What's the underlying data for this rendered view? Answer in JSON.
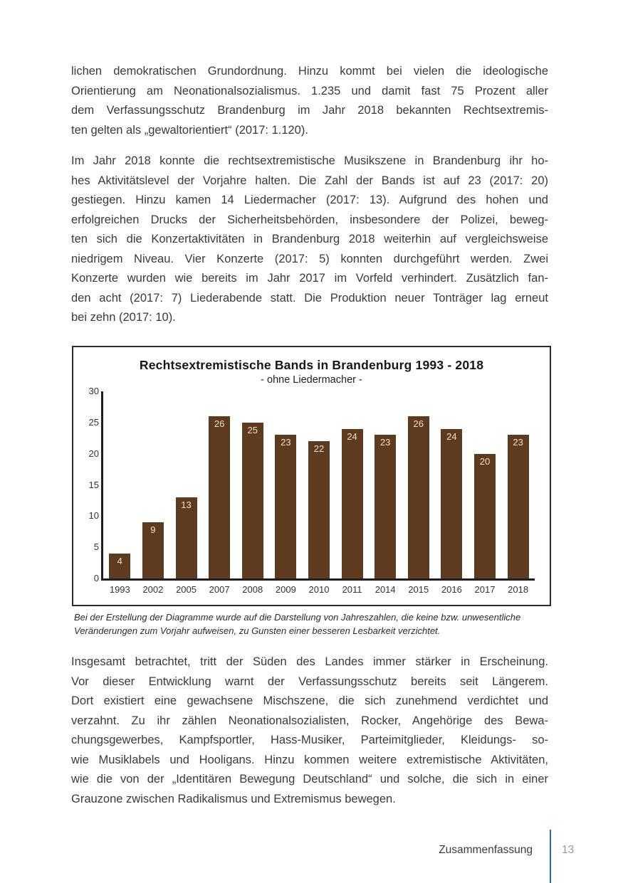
{
  "document": {
    "paragraph1_lines": [
      "lichen demokratischen Grundordnung. Hinzu kommt bei vielen die ideologische",
      "Orientierung am Neonationalsozialismus. 1.235 und damit fast 75 Prozent aller",
      "dem Verfassungsschutz Brandenburg im Jahr 2018 bekannten Rechtsextremis-",
      "ten gelten als „gewaltorientiert“ (2017: 1.120)."
    ],
    "paragraph2_lines": [
      "Im Jahr 2018 konnte die rechtsextremistische Musikszene in Brandenburg ihr ho-",
      "hes Aktivitätslevel der Vorjahre halten. Die Zahl der Bands ist auf 23 (2017: 20)",
      "gestiegen. Hinzu kamen 14 Liedermacher (2017: 13). Aufgrund des hohen und",
      "erfolgreichen Drucks der Sicherheitsbehörden, insbesondere der Polizei, beweg-",
      "ten sich die Konzertaktivitäten in Brandenburg 2018 weiterhin auf vergleichsweise",
      "niedrigem Niveau. Vier Konzerte (2017: 5) konnten durchgeführt werden. Zwei",
      "Konzerte wurden wie bereits im Jahr 2017 im Vorfeld verhindert. Zusätzlich fan-",
      "den acht (2017: 7) Liederabende statt. Die Produktion neuer Tonträger lag erneut",
      "bei zehn (2017: 10)."
    ],
    "paragraph3_lines": [
      "Insgesamt betrachtet, tritt der Süden des Landes immer stärker in Erscheinung.",
      "Vor dieser Entwicklung warnt der Verfassungsschutz bereits seit Längerem.",
      "Dort existiert eine gewachsene Mischszene, die sich zunehmend verdichtet und",
      "verzahnt. Zu ihr zählen Neonationalsozialisten, Rocker, Angehörige des Bewa-",
      "chungsgewerbes, Kampfsportler, Hass-Musiker, Parteimitglieder, Kleidungs- so-",
      "wie Musiklabels und Hooligans. Hinzu kommen weitere extremistische Aktivitäten,",
      "wie die von der „Identitären Bewegung Deutschland“ und solche, die sich in einer",
      "Grauzone zwischen Radikalismus und Extremismus bewegen."
    ],
    "figure_caption_lines": [
      "Bei der Erstellung der Diagramme wurde auf die Darstellung von Jahreszahlen, die keine bzw. unwesentliche",
      "Veränderungen zum Vorjahr aufweisen, zu Gunsten einer besseren Lesbarkeit verzichtet."
    ],
    "footer": {
      "section_label": "Zusammenfassung",
      "page_number": "13",
      "divider_color": "#2d6a9f"
    }
  },
  "chart_data": {
    "type": "bar",
    "title": "Rechtsextremistische Bands in Brandenburg 1993 - 2018",
    "subtitle": "- ohne Liedermacher -",
    "categories": [
      "1993",
      "2002",
      "2005",
      "2007",
      "2008",
      "2009",
      "2010",
      "2011",
      "2014",
      "2015",
      "2016",
      "2017",
      "2018"
    ],
    "values": [
      4,
      9,
      13,
      26,
      25,
      23,
      22,
      24,
      23,
      26,
      24,
      20,
      23
    ],
    "xlabel": "",
    "ylabel": "",
    "ylim": [
      0,
      30
    ],
    "yticks": [
      0,
      5,
      10,
      15,
      20,
      25,
      30
    ],
    "grid": false,
    "legend_position": "none",
    "bar_color": "#5e3b1e",
    "bar_label_color": "#f0e1c5",
    "axis_color": "#1f1f1f"
  }
}
